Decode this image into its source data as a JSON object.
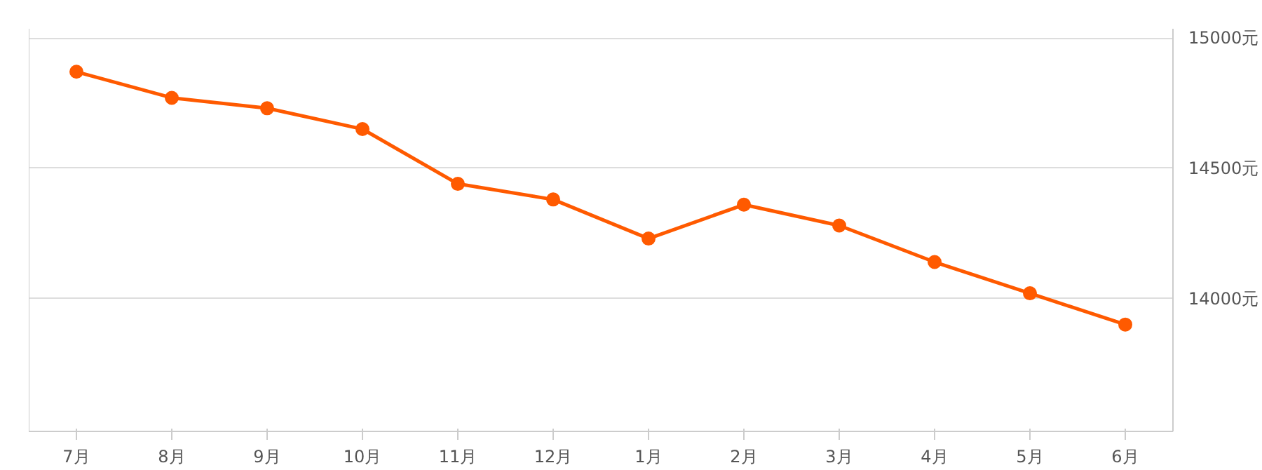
{
  "chart_data": {
    "type": "line",
    "categories": [
      "7月",
      "8月",
      "9月",
      "10月",
      "11月",
      "12月",
      "1月",
      "2月",
      "3月",
      "4月",
      "5月",
      "6月"
    ],
    "series": [
      {
        "color": "#ff5a00",
        "values": [
          14870,
          14770,
          14730,
          14650,
          14440,
          14380,
          14230,
          14360,
          14280,
          14140,
          14020,
          13900
        ]
      }
    ],
    "ylim": [
      13490,
      15035
    ],
    "yticks": [
      {
        "value": 14000,
        "label": "14000元"
      },
      {
        "value": 14500,
        "label": "14500元"
      },
      {
        "value": 15000,
        "label": "15000元"
      }
    ],
    "grid": "y",
    "marker": "circle",
    "line_style": "solid"
  }
}
